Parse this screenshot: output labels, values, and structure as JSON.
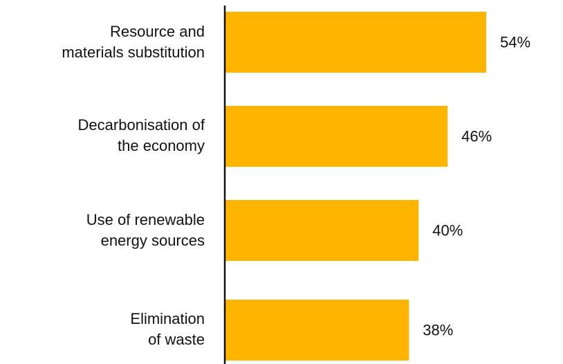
{
  "chart_data": {
    "type": "bar",
    "orientation": "horizontal",
    "categories": [
      [
        "Resource and",
        "materials substitution"
      ],
      [
        "Decarbonisation of",
        "the economy"
      ],
      [
        "Use of renewable",
        "energy sources"
      ],
      [
        "Elimination",
        "of waste"
      ]
    ],
    "values": [
      54,
      46,
      40,
      38
    ],
    "value_labels": [
      "54%",
      "46%",
      "40%",
      "38%"
    ],
    "bar_color": "#FFB400",
    "axis_color": "#111111",
    "title": "",
    "xlabel": "",
    "ylabel": "",
    "xlim": [
      0,
      100
    ],
    "grid": false,
    "legend": "none"
  }
}
